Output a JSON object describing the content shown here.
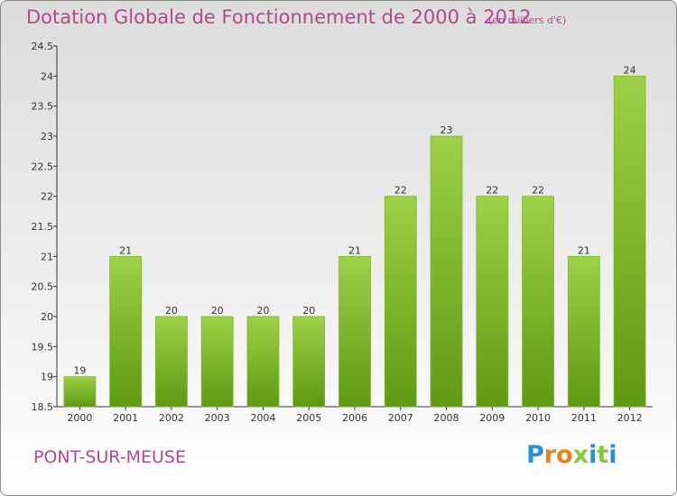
{
  "header": {
    "title": "Dotation Globale de Fonctionnement de 2000 à 2012",
    "unit": "(en milliers d'€)"
  },
  "footer": {
    "commune": "PONT-SUR-MEUSE",
    "logo_text": "Proxiti"
  },
  "colors": {
    "title": "#b14a8c",
    "bar_light": "#9ed048",
    "bar_dark": "#5e9a12",
    "logo_letters": [
      "#2b8fd6",
      "#e8821e",
      "#e8821e",
      "#8cc63e",
      "#2b8fd6",
      "#8cc63e",
      "#2b8fd6"
    ]
  },
  "chart_data": {
    "type": "bar",
    "title": "Dotation Globale de Fonctionnement de 2000 à 2012",
    "subtitle": "(en milliers d'€)",
    "categories": [
      "2000",
      "2001",
      "2002",
      "2003",
      "2004",
      "2005",
      "2006",
      "2007",
      "2008",
      "2009",
      "2010",
      "2011",
      "2012"
    ],
    "values": [
      19,
      21,
      20,
      20,
      20,
      20,
      21,
      22,
      23,
      22,
      22,
      21,
      24
    ],
    "value_labels": [
      "19",
      "21",
      "20",
      "20",
      "20",
      "20",
      "21",
      "22",
      "23",
      "22",
      "22",
      "21",
      "24"
    ],
    "ylim": [
      18.5,
      24.5
    ],
    "yticks": [
      18.5,
      19,
      19.5,
      20,
      20.5,
      21,
      21.5,
      22,
      22.5,
      23,
      23.5,
      24,
      24.5
    ],
    "ytick_labels": [
      "18.5",
      "19",
      "19.5",
      "20",
      "20.5",
      "21",
      "21.5",
      "22",
      "22.5",
      "23",
      "23.5",
      "24",
      "24.5"
    ],
    "xlabel": "",
    "ylabel": "",
    "grid": false,
    "legend": "none"
  }
}
